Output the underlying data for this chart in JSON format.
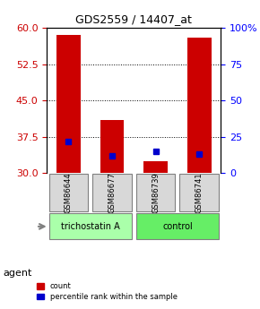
{
  "title": "GDS2559 / 14407_at",
  "samples": [
    "GSM86644",
    "GSM86677",
    "GSM86739",
    "GSM86741"
  ],
  "groups": [
    "trichostatin A",
    "trichostatin A",
    "control",
    "control"
  ],
  "group_colors": [
    "#90EE90",
    "#90EE90",
    "#66DD66",
    "#66DD66"
  ],
  "bar_bottom": 30,
  "red_tops": [
    58.5,
    41.0,
    32.5,
    58.0
  ],
  "blue_values": [
    36.5,
    33.5,
    34.5,
    34.0
  ],
  "left_yticks": [
    30,
    37.5,
    45,
    52.5,
    60
  ],
  "right_yticks": [
    0,
    25,
    50,
    75,
    100
  ],
  "ylim": [
    30,
    60
  ],
  "bar_color": "#CC0000",
  "blue_color": "#0000CC",
  "group_label_colors": {
    "trichostatin A": "#aaffaa",
    "control": "#66ee66"
  },
  "legend_items": [
    {
      "label": "count",
      "color": "#CC0000"
    },
    {
      "label": "percentile rank within the sample",
      "color": "#0000CC"
    }
  ]
}
